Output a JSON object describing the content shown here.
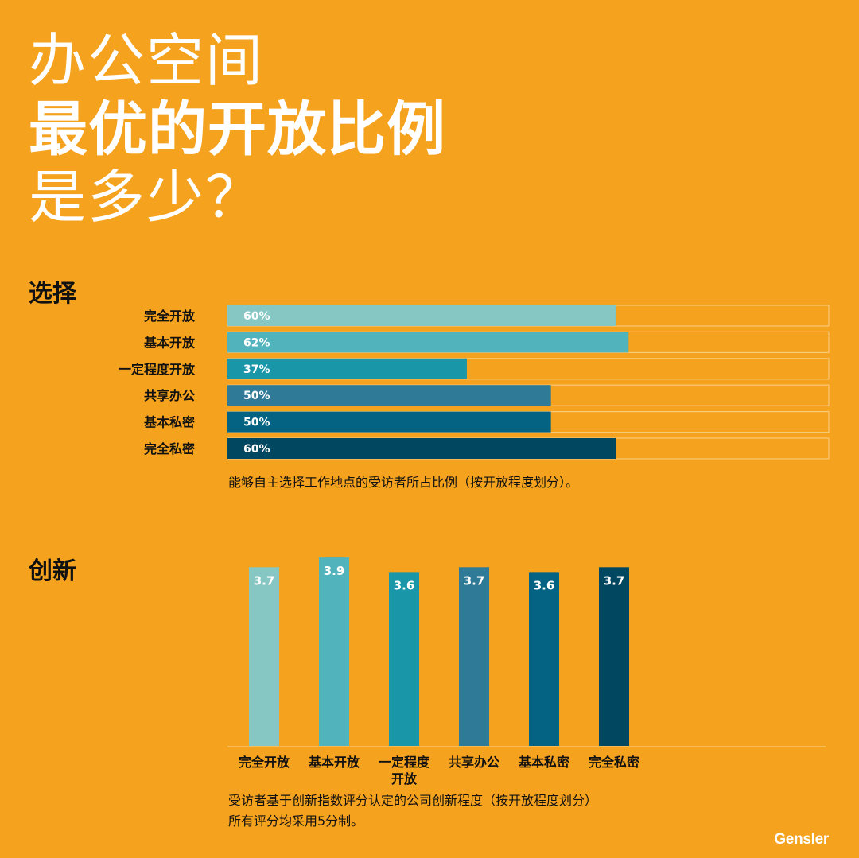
{
  "title": {
    "line1": "办公空间",
    "line2": "最优的开放比例",
    "line3": "是多少？"
  },
  "colors": {
    "background": "#F5A21E",
    "series": [
      "#86C7C3",
      "#51B3BC",
      "#1A96A9",
      "#2E7A97",
      "#046382",
      "#00475F"
    ],
    "track_border": "#F8C978"
  },
  "choice": {
    "heading": "选择",
    "caption": "能够自主选择工作地点的受访者所占比例（按开放程度划分）。"
  },
  "innovation": {
    "heading": "创新",
    "caption_line1": "受访者基于创新指数评分认定的公司创新程度（按开放程度划分）",
    "caption_line2": "所有评分均采用5分制。"
  },
  "chart_data": [
    {
      "type": "bar",
      "orientation": "horizontal",
      "categories": [
        "完全开放",
        "基本开放",
        "一定程度开放",
        "共享办公",
        "基本私密",
        "完全私密"
      ],
      "values": [
        60,
        62,
        37,
        50,
        50,
        60
      ],
      "value_labels": [
        "60%",
        "62%",
        "37%",
        "50%",
        "50%",
        "60%"
      ],
      "xlim": [
        0,
        100
      ],
      "unit": "%"
    },
    {
      "type": "bar",
      "orientation": "vertical",
      "categories": [
        "完全开放",
        "基本开放",
        "一定程度开放",
        "共享办公",
        "基本私密",
        "完全私密"
      ],
      "category_display": [
        [
          "完全开放"
        ],
        [
          "基本开放"
        ],
        [
          "一定程度",
          "开放"
        ],
        [
          "共享办公"
        ],
        [
          "基本私密"
        ],
        [
          "完全私密"
        ]
      ],
      "values": [
        3.7,
        3.9,
        3.6,
        3.7,
        3.6,
        3.7
      ],
      "value_labels": [
        "3.7",
        "3.9",
        "3.6",
        "3.7",
        "3.6",
        "3.7"
      ],
      "ylim": [
        0,
        4.1
      ]
    }
  ],
  "brand": "Gensler"
}
